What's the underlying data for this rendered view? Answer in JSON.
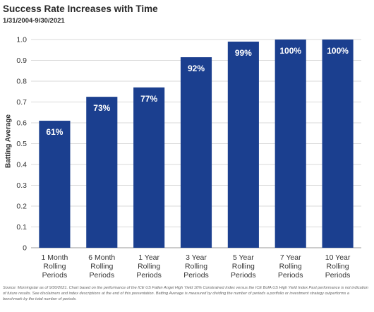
{
  "header": {
    "title": "Success Rate Increases with Time",
    "subtitle": "1/31/2004-9/30/2021"
  },
  "chart_data": {
    "type": "bar",
    "categories": [
      [
        "1 Month",
        "Rolling",
        "Periods"
      ],
      [
        "6 Month",
        "Rolling",
        "Periods"
      ],
      [
        "1 Year",
        "Rolling",
        "Periods"
      ],
      [
        "3 Year",
        "Rolling",
        "Periods"
      ],
      [
        "5 Year",
        "Rolling",
        "Periods"
      ],
      [
        "7 Year",
        "Rolling",
        "Periods"
      ],
      [
        "10 Year",
        "Rolling",
        "Periods"
      ]
    ],
    "values": [
      0.61,
      0.725,
      0.77,
      0.915,
      0.99,
      1.0,
      1.0
    ],
    "data_labels": [
      "61%",
      "73%",
      "77%",
      "92%",
      "99%",
      "100%",
      "100%"
    ],
    "ylabel": "Batting Average",
    "ylim": [
      0,
      1.0
    ],
    "yticks": [
      "0",
      "0.1",
      "0.2",
      "0.3",
      "0.4",
      "0.5",
      "0.6",
      "0.7",
      "0.8",
      "0.9",
      "1.0"
    ],
    "grid": true,
    "bar_color": "#1b3f8f",
    "label_color": "#ffffff"
  },
  "footnote": "Source: Morningstar as of 9/30/2021. Chart based on the performance of the ICE US Fallen Angel High Yield 10% Constrained Index versus the ICE BofA US High Yield Index Past performance is not indication of future results. See disclaimers and index descriptions at the end of this presentation. Batting Average is measured by dividing the number of periods a portfolio or investment strategy outperforms a benchmark by the total number of periods."
}
